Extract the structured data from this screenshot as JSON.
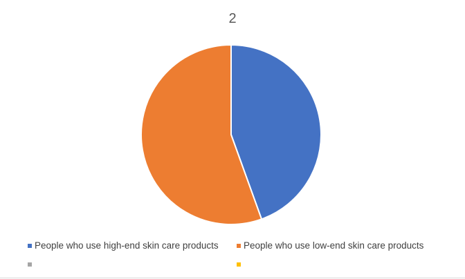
{
  "chart_data": {
    "type": "pie",
    "title": "2",
    "categories": [
      "People who use high-end skin care products",
      "People who use low-end skin care products",
      "",
      ""
    ],
    "values": [
      44.5,
      55.5,
      0,
      0
    ],
    "colors": [
      "#4472c4",
      "#ed7d31",
      "#a5a5a5",
      "#ffc000"
    ],
    "legend_position": "bottom"
  }
}
